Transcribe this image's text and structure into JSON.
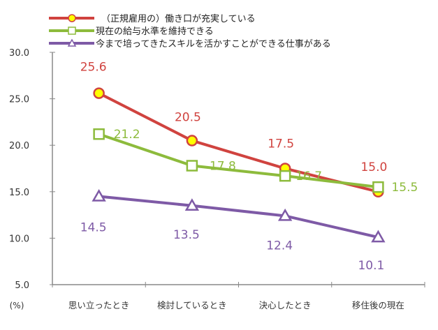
{
  "chart_data": {
    "type": "line",
    "categories": [
      "思い立ったとき",
      "検討しているとき",
      "決心したとき",
      "移住後の現在"
    ],
    "ylabel": "(%)",
    "ylim": [
      5.0,
      30.0
    ],
    "yticks": [
      "5.0",
      "10.0",
      "15.0",
      "20.0",
      "25.0",
      "30.0"
    ],
    "grid": false,
    "legend_position": "top",
    "series": [
      {
        "name": "（正規雇用の）働き口が充実している",
        "values": [
          25.6,
          20.5,
          17.5,
          15.0
        ],
        "labels": [
          "25.6",
          "20.5",
          "17.5",
          "15.0"
        ],
        "color": "#d0433f",
        "marker": "circle",
        "marker_fill": "#ffff00"
      },
      {
        "name": "現在の給与水準を維持できる",
        "values": [
          21.2,
          17.8,
          16.7,
          15.5
        ],
        "labels": [
          "21.2",
          "17.8",
          "16.7",
          "15.5"
        ],
        "color": "#8dbb3c",
        "marker": "square",
        "marker_fill": "#ffffff"
      },
      {
        "name": "今まで培ってきたスキルを活かすことができる仕事がある",
        "values": [
          14.5,
          13.5,
          12.4,
          10.1
        ],
        "labels": [
          "14.5",
          "13.5",
          "12.4",
          "10.1"
        ],
        "color": "#7e5aa6",
        "marker": "triangle",
        "marker_fill": "#ffffff"
      }
    ]
  }
}
